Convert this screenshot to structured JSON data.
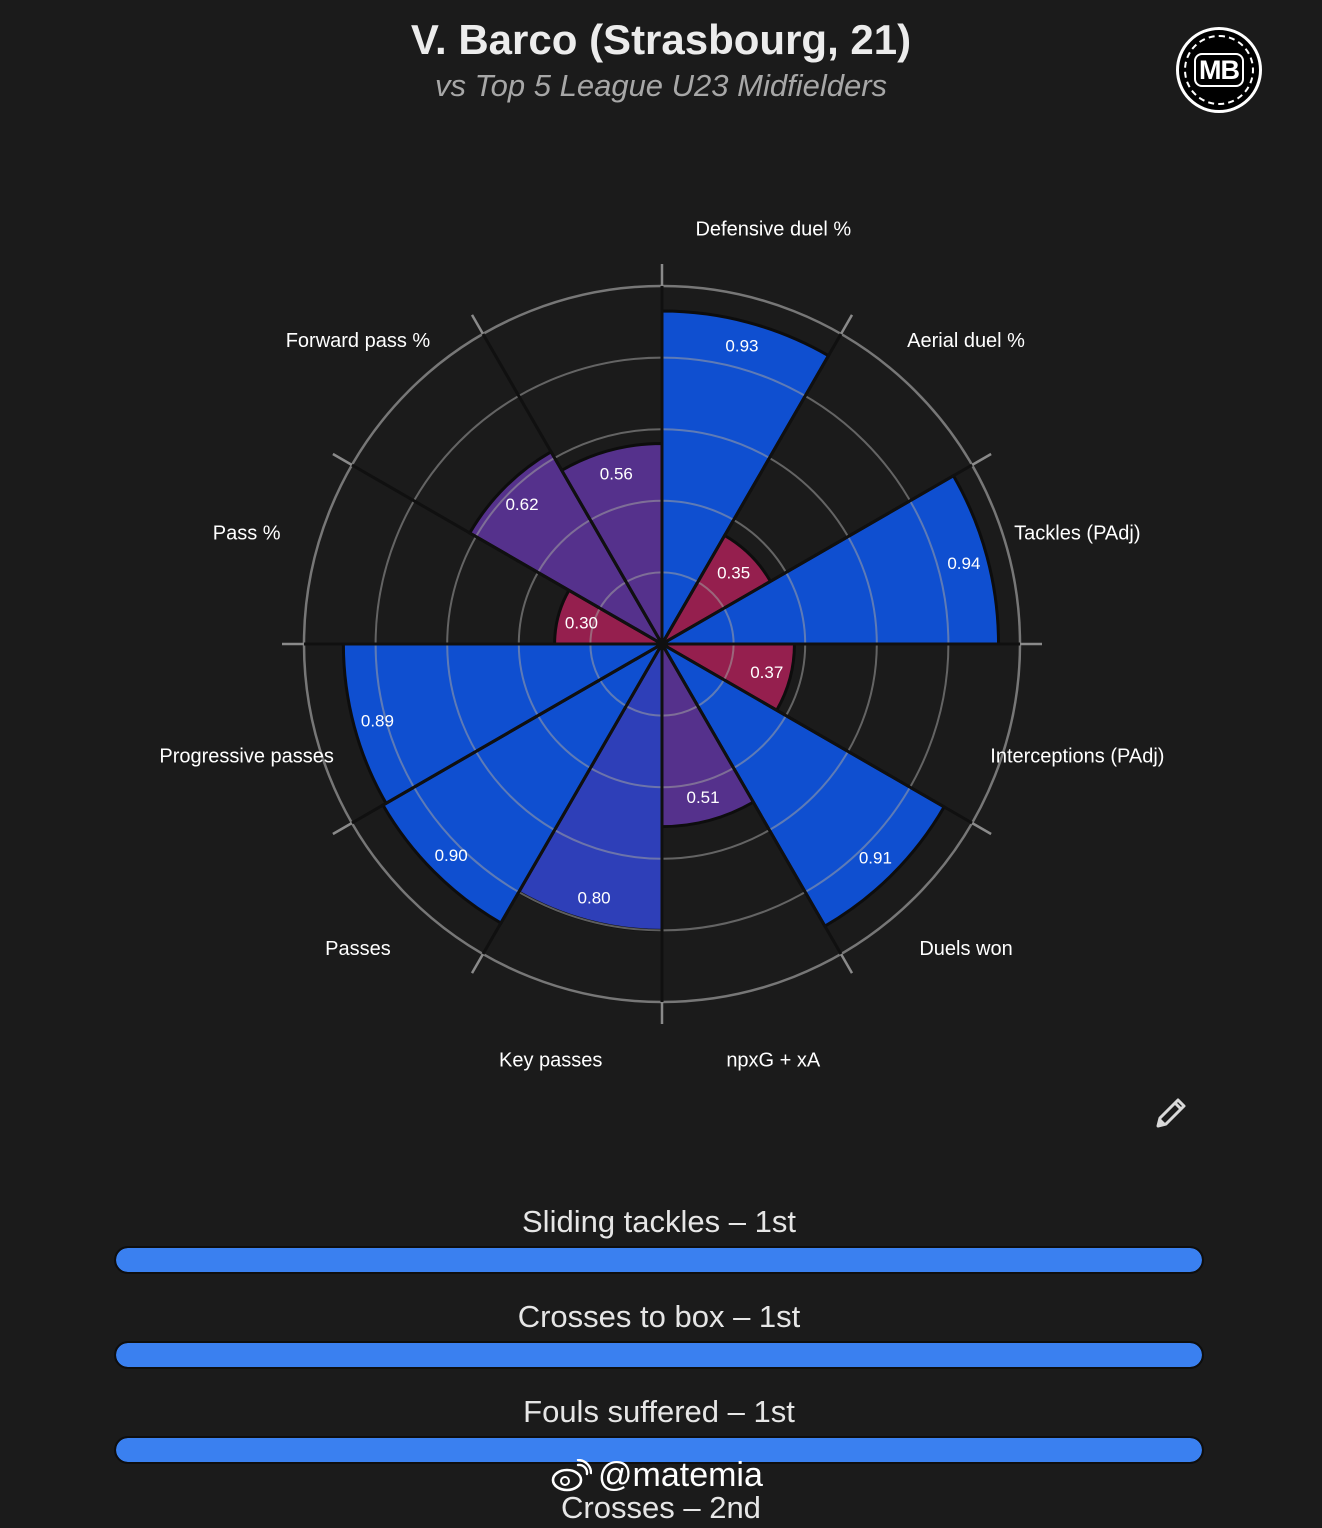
{
  "header": {
    "title": "V. Barco (Strasbourg, 21)",
    "subtitle": "vs Top 5 League U23 Midfielders",
    "logo_text": "MB"
  },
  "chart_data": {
    "type": "polar-bar",
    "range": [
      0,
      1
    ],
    "rings": [
      0.2,
      0.4,
      0.6,
      0.8,
      1.0
    ],
    "colors": {
      "high": "#0f4fd0",
      "mid": "#2e3fb8",
      "mid_low": "#55318c",
      "low": "#951f4e"
    },
    "categories": [
      "Defensive duel %",
      "Aerial duel %",
      "Tackles (PAdj)",
      "Interceptions (PAdj)",
      "Duels won",
      "npxG + xA",
      "Key passes",
      "Passes",
      "Progressive passes",
      "Pass %",
      "Forward pass %",
      ""
    ],
    "values": [
      0.93,
      0.35,
      0.94,
      0.37,
      0.91,
      0.51,
      0.8,
      0.9,
      0.89,
      0.3,
      0.62,
      0.56
    ],
    "value_labels": [
      "0.93",
      "0.35",
      "0.94",
      "0.37",
      "0.91",
      "0.51",
      "0.80",
      "0.90",
      "0.89",
      "0.30",
      "0.62",
      "0.56"
    ]
  },
  "percentile_bars": [
    {
      "label": "Sliding tackles – 1st",
      "percentile": 1.0
    },
    {
      "label": "Crosses to box – 1st",
      "percentile": 1.0
    },
    {
      "label": "Fouls suffered – 1st",
      "percentile": 1.0
    }
  ],
  "cut_label": "Crosses – 2nd",
  "watermark": "@matemia",
  "icons": {
    "edit": "pencil-icon",
    "watermark": "weibo-icon"
  }
}
